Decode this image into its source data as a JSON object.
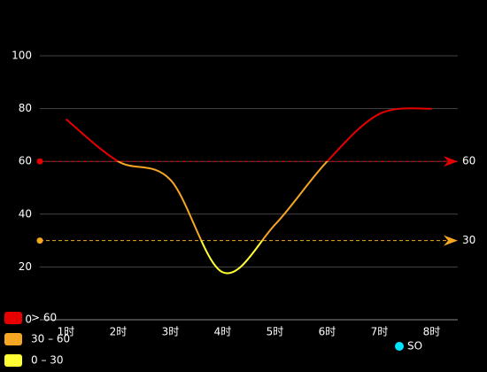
{
  "chart_data": {
    "type": "line",
    "categories": [
      "1时",
      "2时",
      "3时",
      "4时",
      "5时",
      "6时",
      "7时",
      "8时"
    ],
    "series": [
      {
        "name": "SO",
        "color": "#00e5ff",
        "values": [
          76,
          60,
          53,
          18,
          36,
          60,
          78,
          80
        ]
      }
    ],
    "ylim": [
      0,
      100
    ],
    "yticks": [
      0,
      20,
      40,
      60,
      80,
      100
    ],
    "grid": true,
    "smooth": true,
    "visual_map": [
      {
        "min": 60,
        "label": "> 60",
        "color": "#e60000"
      },
      {
        "min": 30,
        "max": 60,
        "label": "30 – 60",
        "color": "#f5a623"
      },
      {
        "min": 0,
        "max": 30,
        "label": "0 – 30",
        "color": "#ffff33"
      }
    ],
    "mark_lines": [
      {
        "value": 60,
        "color": "#e60000"
      },
      {
        "value": 30,
        "color": "#f5a623"
      }
    ]
  }
}
